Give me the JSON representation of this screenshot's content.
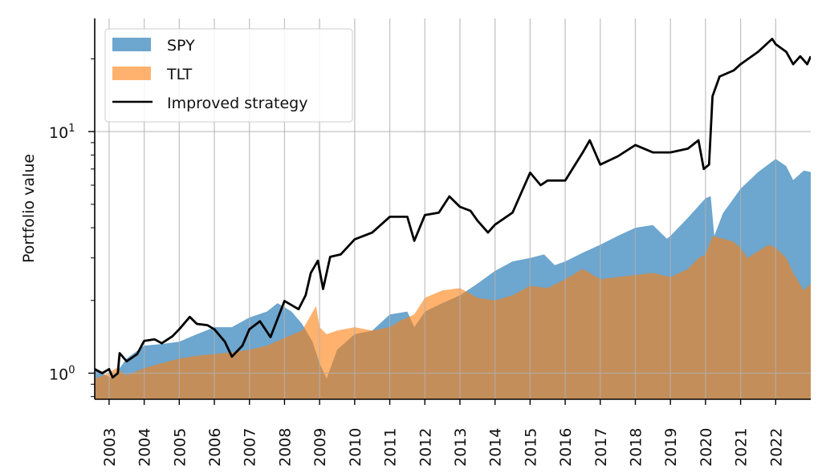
{
  "chart_data": {
    "type": "area",
    "title": "",
    "xlabel": "",
    "ylabel": "Portfolio value",
    "yscale": "log",
    "ylim": [
      0.78,
      29.4
    ],
    "xlim": [
      2002.59,
      2023.0
    ],
    "grid": true,
    "legend_position": "top-left",
    "x_ticks": [
      "2003",
      "2004",
      "2005",
      "2006",
      "2007",
      "2008",
      "2009",
      "2010",
      "2011",
      "2012",
      "2013",
      "2014",
      "2015",
      "2016",
      "2017",
      "2018",
      "2019",
      "2020",
      "2021",
      "2022"
    ],
    "y_ticks": [
      {
        "value": 1,
        "label": "10",
        "exp": "0"
      },
      {
        "value": 10,
        "label": "10",
        "exp": "1"
      }
    ],
    "colors": {
      "SPY": "#1f77b4",
      "TLT": "#ff7f0e",
      "Improved strategy": "#000000"
    },
    "series": [
      {
        "name": "SPY",
        "kind": "fill",
        "x": [
          2002.59,
          2002.8,
          2003.1,
          2003.3,
          2003.5,
          2004.0,
          2004.5,
          2005.0,
          2005.5,
          2006.0,
          2006.5,
          2007.0,
          2007.5,
          2007.8,
          2008.2,
          2008.5,
          2008.8,
          2009.0,
          2009.2,
          2009.5,
          2010.0,
          2010.5,
          2011.0,
          2011.5,
          2011.7,
          2012.0,
          2012.5,
          2013.0,
          2013.5,
          2014.0,
          2014.5,
          2015.0,
          2015.4,
          2015.7,
          2016.0,
          2016.5,
          2017.0,
          2017.5,
          2018.0,
          2018.5,
          2018.9,
          2019.0,
          2019.5,
          2020.0,
          2020.15,
          2020.25,
          2020.5,
          2021.0,
          2021.5,
          2022.0,
          2022.3,
          2022.5,
          2022.8,
          2023.0
        ],
        "values": [
          1.05,
          1.0,
          0.95,
          1.05,
          1.15,
          1.3,
          1.32,
          1.35,
          1.45,
          1.55,
          1.55,
          1.7,
          1.8,
          1.95,
          1.8,
          1.6,
          1.35,
          1.1,
          0.95,
          1.25,
          1.45,
          1.5,
          1.75,
          1.8,
          1.55,
          1.8,
          1.95,
          2.1,
          2.35,
          2.65,
          2.9,
          3.0,
          3.1,
          2.8,
          2.9,
          3.15,
          3.4,
          3.7,
          4.0,
          4.1,
          3.6,
          3.7,
          4.4,
          5.3,
          5.4,
          3.7,
          4.6,
          5.8,
          6.8,
          7.7,
          7.2,
          6.3,
          6.9,
          6.8
        ]
      },
      {
        "name": "TLT",
        "kind": "fill",
        "x": [
          2002.59,
          2003.0,
          2003.2,
          2003.5,
          2004.0,
          2004.5,
          2005.0,
          2005.5,
          2006.0,
          2006.5,
          2007.0,
          2007.5,
          2008.0,
          2008.5,
          2008.9,
          2009.0,
          2009.2,
          2009.5,
          2010.0,
          2010.5,
          2011.0,
          2011.3,
          2011.7,
          2012.0,
          2012.5,
          2013.0,
          2013.5,
          2014.0,
          2014.5,
          2015.0,
          2015.5,
          2016.0,
          2016.5,
          2017.0,
          2017.5,
          2018.0,
          2018.5,
          2019.0,
          2019.5,
          2019.8,
          2020.0,
          2020.2,
          2020.5,
          2020.8,
          2021.0,
          2021.2,
          2021.5,
          2021.8,
          2022.0,
          2022.3,
          2022.5,
          2022.8,
          2023.0
        ],
        "values": [
          0.95,
          1.0,
          1.05,
          0.98,
          1.05,
          1.1,
          1.15,
          1.18,
          1.2,
          1.22,
          1.25,
          1.3,
          1.4,
          1.5,
          1.9,
          1.55,
          1.45,
          1.5,
          1.55,
          1.5,
          1.55,
          1.65,
          1.75,
          2.05,
          2.2,
          2.25,
          2.05,
          2.0,
          2.1,
          2.3,
          2.25,
          2.45,
          2.7,
          2.45,
          2.5,
          2.55,
          2.6,
          2.5,
          2.7,
          3.0,
          3.1,
          3.7,
          3.6,
          3.5,
          3.3,
          3.0,
          3.2,
          3.4,
          3.3,
          3.0,
          2.6,
          2.2,
          2.35
        ]
      },
      {
        "name": "Improved strategy",
        "kind": "line",
        "x": [
          2002.59,
          2002.8,
          2003.0,
          2003.1,
          2003.25,
          2003.3,
          2003.5,
          2003.8,
          2004.0,
          2004.3,
          2004.5,
          2004.8,
          2005.0,
          2005.3,
          2005.5,
          2005.8,
          2006.0,
          2006.3,
          2006.5,
          2006.8,
          2007.0,
          2007.3,
          2007.6,
          2008.0,
          2008.4,
          2008.6,
          2008.75,
          2008.95,
          2009.1,
          2009.3,
          2009.6,
          2010.0,
          2010.5,
          2011.0,
          2011.5,
          2011.7,
          2012.0,
          2012.4,
          2012.7,
          2013.0,
          2013.3,
          2013.5,
          2013.8,
          2014.0,
          2014.5,
          2015.0,
          2015.3,
          2015.5,
          2016.0,
          2016.5,
          2016.7,
          2017.0,
          2017.5,
          2018.0,
          2018.5,
          2019.0,
          2019.5,
          2019.8,
          2019.95,
          2020.1,
          2020.2,
          2020.4,
          2020.8,
          2021.0,
          2021.5,
          2021.9,
          2022.0,
          2022.3,
          2022.5,
          2022.7,
          2022.9,
          2023.0
        ],
        "values": [
          1.04,
          1.0,
          1.04,
          0.96,
          1.0,
          1.21,
          1.12,
          1.2,
          1.36,
          1.38,
          1.33,
          1.42,
          1.52,
          1.71,
          1.6,
          1.58,
          1.52,
          1.35,
          1.17,
          1.3,
          1.52,
          1.64,
          1.41,
          1.99,
          1.84,
          2.1,
          2.6,
          2.92,
          2.23,
          3.03,
          3.1,
          3.58,
          3.82,
          4.44,
          4.44,
          3.53,
          4.51,
          4.62,
          5.39,
          4.88,
          4.7,
          4.28,
          3.82,
          4.12,
          4.62,
          6.76,
          6.0,
          6.27,
          6.27,
          8.19,
          9.2,
          7.3,
          7.9,
          8.8,
          8.2,
          8.2,
          8.5,
          9.2,
          7.0,
          7.3,
          14.0,
          16.9,
          17.9,
          19.0,
          21.4,
          24.2,
          23.0,
          21.4,
          19.0,
          20.5,
          19.0,
          20.5
        ]
      }
    ]
  },
  "legend": {
    "items": [
      {
        "label": "SPY",
        "kind": "patch"
      },
      {
        "label": "TLT",
        "kind": "patch"
      },
      {
        "label": "Improved strategy",
        "kind": "line"
      }
    ]
  }
}
